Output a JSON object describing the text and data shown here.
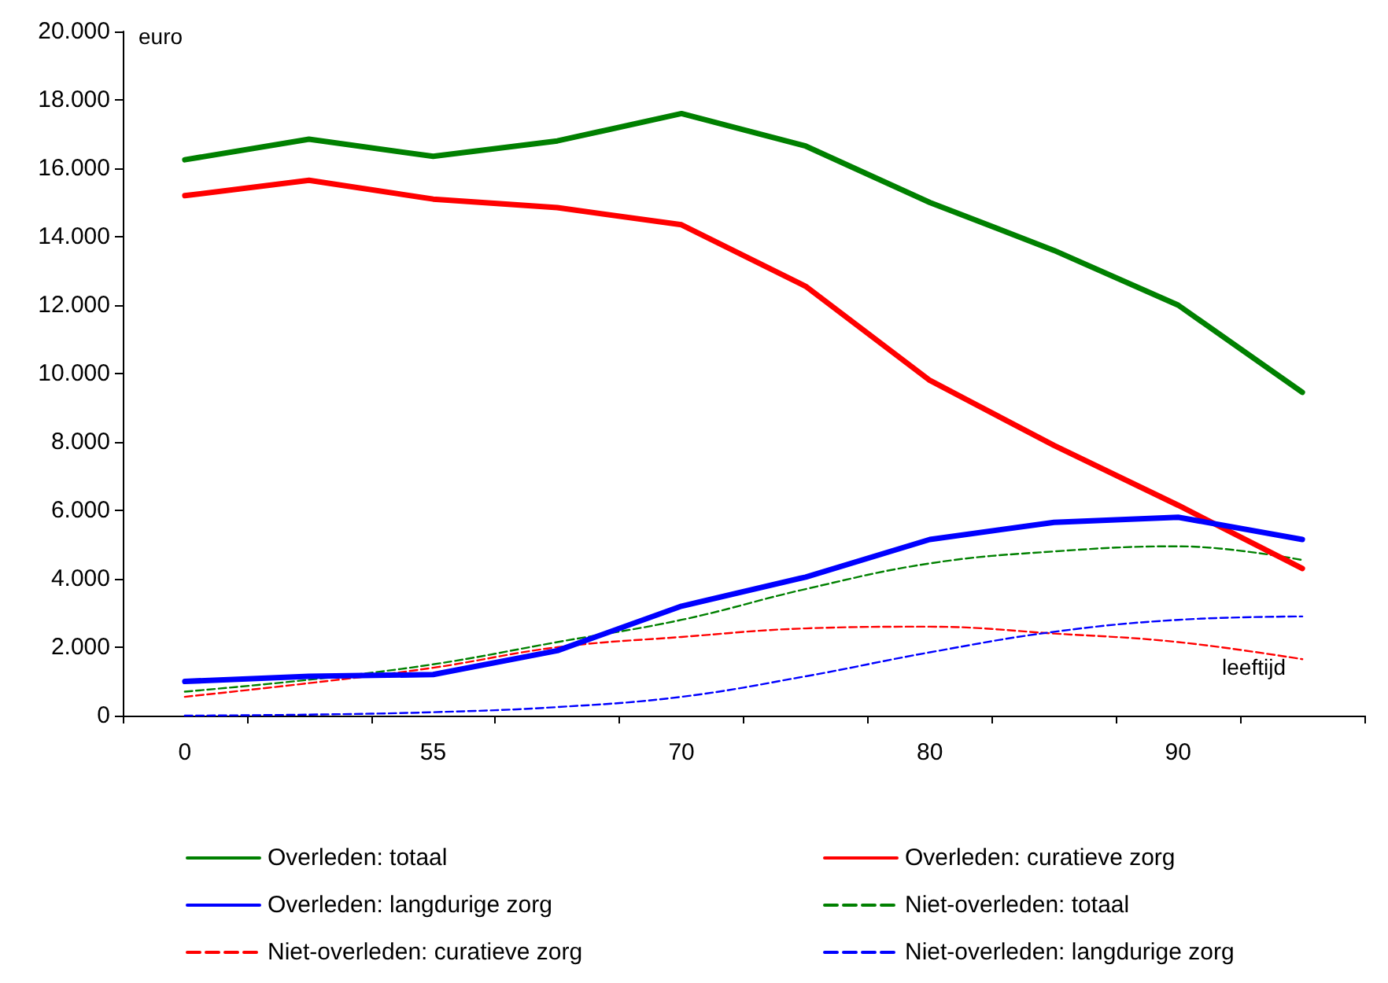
{
  "chart_data": {
    "type": "line",
    "ylabel": "euro",
    "xlabel": "leeftijd",
    "categories": [
      "0",
      null,
      "55",
      null,
      "70",
      null,
      "80",
      null,
      "90",
      null
    ],
    "series": [
      {
        "name": "Overleden: totaal",
        "color": "#008000",
        "line_style": "solid",
        "values": [
          16250,
          16850,
          16350,
          16800,
          17600,
          16650,
          15000,
          13600,
          12000,
          9450
        ]
      },
      {
        "name": "Overleden: curatieve zorg",
        "color": "#ff0000",
        "line_style": "solid",
        "values": [
          15200,
          15650,
          15100,
          14850,
          14350,
          12550,
          9800,
          7900,
          6150,
          4300
        ]
      },
      {
        "name": "Overleden: langdurige zorg",
        "color": "#0000ff",
        "line_style": "solid",
        "values": [
          1000,
          1150,
          1200,
          1900,
          3200,
          4050,
          5150,
          5650,
          5800,
          5150
        ]
      },
      {
        "name": "Niet-overleden: totaal",
        "color": "#008000",
        "line_style": "dashed",
        "values": [
          700,
          1050,
          1500,
          2150,
          2800,
          3700,
          4450,
          4800,
          4950,
          4550
        ]
      },
      {
        "name": "Niet-overleden: curatieve zorg",
        "color": "#ff0000",
        "line_style": "dashed",
        "values": [
          550,
          950,
          1400,
          2000,
          2300,
          2550,
          2600,
          2400,
          2150,
          1650
        ]
      },
      {
        "name": "Niet-overleden: langdurige zorg",
        "color": "#0000ff",
        "line_style": "dashed",
        "values": [
          0,
          30,
          100,
          250,
          550,
          1150,
          1850,
          2450,
          2800,
          2900
        ]
      }
    ],
    "ylim": [
      0,
      20000
    ],
    "yticks": [
      {
        "value": 0,
        "label": "0"
      },
      {
        "value": 2000,
        "label": "2.000"
      },
      {
        "value": 4000,
        "label": "4.000"
      },
      {
        "value": 6000,
        "label": "6.000"
      },
      {
        "value": 8000,
        "label": "8.000"
      },
      {
        "value": 10000,
        "label": "10.000"
      },
      {
        "value": 12000,
        "label": "12.000"
      },
      {
        "value": 14000,
        "label": "14.000"
      },
      {
        "value": 16000,
        "label": "16.000"
      },
      {
        "value": 18000,
        "label": "18.000"
      },
      {
        "value": 20000,
        "label": "20.000"
      }
    ],
    "grid": false,
    "legend": "bottom",
    "marker": "none"
  }
}
